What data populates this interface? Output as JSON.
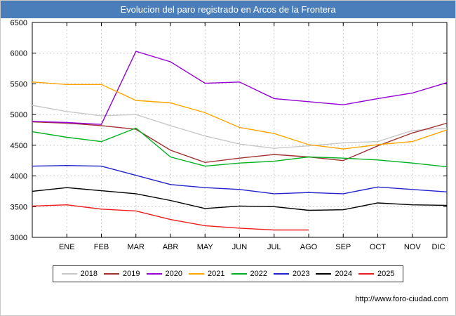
{
  "header": {
    "bg": "#4a7ebb",
    "fg": "#ffffff"
  },
  "footer": {
    "url": "http://www.foro-ciudad.com"
  },
  "chart_data": {
    "type": "line",
    "title": "Evolucion del paro registrado en Arcos de la Frontera",
    "categories": [
      "ENE",
      "FEB",
      "MAR",
      "ABR",
      "MAY",
      "JUN",
      "JUL",
      "AGO",
      "SEP",
      "OCT",
      "NOV",
      "DIC"
    ],
    "ylim": [
      3000,
      6500
    ],
    "ytick_step": 500,
    "grid": true,
    "legend_position": "bottom",
    "x_note": "each series begins at the left axis with a start value, then one point per month ENE-DIC",
    "series": [
      {
        "name": "2018",
        "color": "#c8c8c8",
        "start": 5150,
        "values": [
          5050,
          4980,
          5000,
          4820,
          4650,
          4520,
          4450,
          4490,
          4540,
          4560,
          4740,
          4780
        ]
      },
      {
        "name": "2019",
        "color": "#a03232",
        "start": 4880,
        "values": [
          4860,
          4820,
          4760,
          4420,
          4220,
          4290,
          4350,
          4310,
          4250,
          4490,
          4700,
          4860
        ]
      },
      {
        "name": "2020",
        "color": "#9400d3",
        "start": 4890,
        "values": [
          4870,
          4840,
          6030,
          5860,
          5510,
          5530,
          5260,
          5210,
          5160,
          5260,
          5350,
          5520
        ]
      },
      {
        "name": "2021",
        "color": "#ffa500",
        "start": 5530,
        "values": [
          5490,
          5490,
          5230,
          5190,
          5030,
          4790,
          4690,
          4510,
          4440,
          4510,
          4560,
          4750
        ]
      },
      {
        "name": "2022",
        "color": "#00b022",
        "start": 4720,
        "values": [
          4630,
          4560,
          4780,
          4310,
          4160,
          4210,
          4240,
          4310,
          4290,
          4260,
          4210,
          4150
        ]
      },
      {
        "name": "2023",
        "color": "#2222cc",
        "start": 4160,
        "values": [
          4170,
          4160,
          4010,
          3860,
          3810,
          3780,
          3710,
          3730,
          3710,
          3820,
          3780,
          3740
        ]
      },
      {
        "name": "2024",
        "color": "#000000",
        "start": 3750,
        "values": [
          3810,
          3760,
          3710,
          3600,
          3470,
          3510,
          3500,
          3440,
          3450,
          3560,
          3530,
          3520
        ]
      },
      {
        "name": "2025",
        "color": "#ee1c1c",
        "start": 3510,
        "values": [
          3530,
          3460,
          3430,
          3290,
          3190,
          3150,
          3120,
          3120
        ]
      }
    ]
  }
}
